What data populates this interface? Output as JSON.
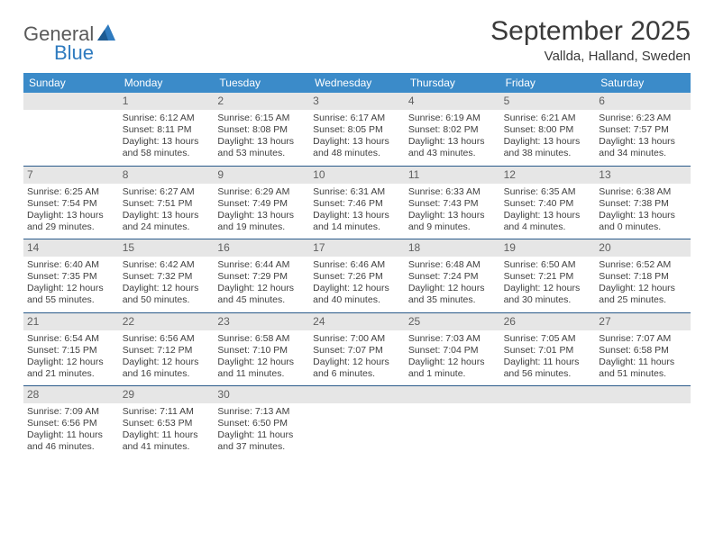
{
  "logo": {
    "text1": "General",
    "text2": "Blue"
  },
  "title": "September 2025",
  "location": "Vallda, Halland, Sweden",
  "colors": {
    "header_bg": "#3b8bc9",
    "header_text": "#ffffff",
    "daynum_bg": "#e6e6e6",
    "daynum_text": "#606060",
    "rule": "#2a5a8a",
    "body_text": "#404040",
    "logo_blue": "#2f7bbf"
  },
  "weekdays": [
    "Sunday",
    "Monday",
    "Tuesday",
    "Wednesday",
    "Thursday",
    "Friday",
    "Saturday"
  ],
  "weeks": [
    [
      null,
      {
        "n": "1",
        "sunrise": "6:12 AM",
        "sunset": "8:11 PM",
        "day_h": "13",
        "day_m": "58"
      },
      {
        "n": "2",
        "sunrise": "6:15 AM",
        "sunset": "8:08 PM",
        "day_h": "13",
        "day_m": "53"
      },
      {
        "n": "3",
        "sunrise": "6:17 AM",
        "sunset": "8:05 PM",
        "day_h": "13",
        "day_m": "48"
      },
      {
        "n": "4",
        "sunrise": "6:19 AM",
        "sunset": "8:02 PM",
        "day_h": "13",
        "day_m": "43"
      },
      {
        "n": "5",
        "sunrise": "6:21 AM",
        "sunset": "8:00 PM",
        "day_h": "13",
        "day_m": "38"
      },
      {
        "n": "6",
        "sunrise": "6:23 AM",
        "sunset": "7:57 PM",
        "day_h": "13",
        "day_m": "34"
      }
    ],
    [
      {
        "n": "7",
        "sunrise": "6:25 AM",
        "sunset": "7:54 PM",
        "day_h": "13",
        "day_m": "29"
      },
      {
        "n": "8",
        "sunrise": "6:27 AM",
        "sunset": "7:51 PM",
        "day_h": "13",
        "day_m": "24"
      },
      {
        "n": "9",
        "sunrise": "6:29 AM",
        "sunset": "7:49 PM",
        "day_h": "13",
        "day_m": "19"
      },
      {
        "n": "10",
        "sunrise": "6:31 AM",
        "sunset": "7:46 PM",
        "day_h": "13",
        "day_m": "14"
      },
      {
        "n": "11",
        "sunrise": "6:33 AM",
        "sunset": "7:43 PM",
        "day_h": "13",
        "day_m": "9"
      },
      {
        "n": "12",
        "sunrise": "6:35 AM",
        "sunset": "7:40 PM",
        "day_h": "13",
        "day_m": "4"
      },
      {
        "n": "13",
        "sunrise": "6:38 AM",
        "sunset": "7:38 PM",
        "day_h": "13",
        "day_m": "0"
      }
    ],
    [
      {
        "n": "14",
        "sunrise": "6:40 AM",
        "sunset": "7:35 PM",
        "day_h": "12",
        "day_m": "55"
      },
      {
        "n": "15",
        "sunrise": "6:42 AM",
        "sunset": "7:32 PM",
        "day_h": "12",
        "day_m": "50"
      },
      {
        "n": "16",
        "sunrise": "6:44 AM",
        "sunset": "7:29 PM",
        "day_h": "12",
        "day_m": "45"
      },
      {
        "n": "17",
        "sunrise": "6:46 AM",
        "sunset": "7:26 PM",
        "day_h": "12",
        "day_m": "40"
      },
      {
        "n": "18",
        "sunrise": "6:48 AM",
        "sunset": "7:24 PM",
        "day_h": "12",
        "day_m": "35"
      },
      {
        "n": "19",
        "sunrise": "6:50 AM",
        "sunset": "7:21 PM",
        "day_h": "12",
        "day_m": "30"
      },
      {
        "n": "20",
        "sunrise": "6:52 AM",
        "sunset": "7:18 PM",
        "day_h": "12",
        "day_m": "25"
      }
    ],
    [
      {
        "n": "21",
        "sunrise": "6:54 AM",
        "sunset": "7:15 PM",
        "day_h": "12",
        "day_m": "21"
      },
      {
        "n": "22",
        "sunrise": "6:56 AM",
        "sunset": "7:12 PM",
        "day_h": "12",
        "day_m": "16"
      },
      {
        "n": "23",
        "sunrise": "6:58 AM",
        "sunset": "7:10 PM",
        "day_h": "12",
        "day_m": "11"
      },
      {
        "n": "24",
        "sunrise": "7:00 AM",
        "sunset": "7:07 PM",
        "day_h": "12",
        "day_m": "6"
      },
      {
        "n": "25",
        "sunrise": "7:03 AM",
        "sunset": "7:04 PM",
        "day_h": "12",
        "day_m": "1",
        "singular": true
      },
      {
        "n": "26",
        "sunrise": "7:05 AM",
        "sunset": "7:01 PM",
        "day_h": "11",
        "day_m": "56"
      },
      {
        "n": "27",
        "sunrise": "7:07 AM",
        "sunset": "6:58 PM",
        "day_h": "11",
        "day_m": "51"
      }
    ],
    [
      {
        "n": "28",
        "sunrise": "7:09 AM",
        "sunset": "6:56 PM",
        "day_h": "11",
        "day_m": "46"
      },
      {
        "n": "29",
        "sunrise": "7:11 AM",
        "sunset": "6:53 PM",
        "day_h": "11",
        "day_m": "41"
      },
      {
        "n": "30",
        "sunrise": "7:13 AM",
        "sunset": "6:50 PM",
        "day_h": "11",
        "day_m": "37"
      },
      null,
      null,
      null,
      null
    ]
  ]
}
